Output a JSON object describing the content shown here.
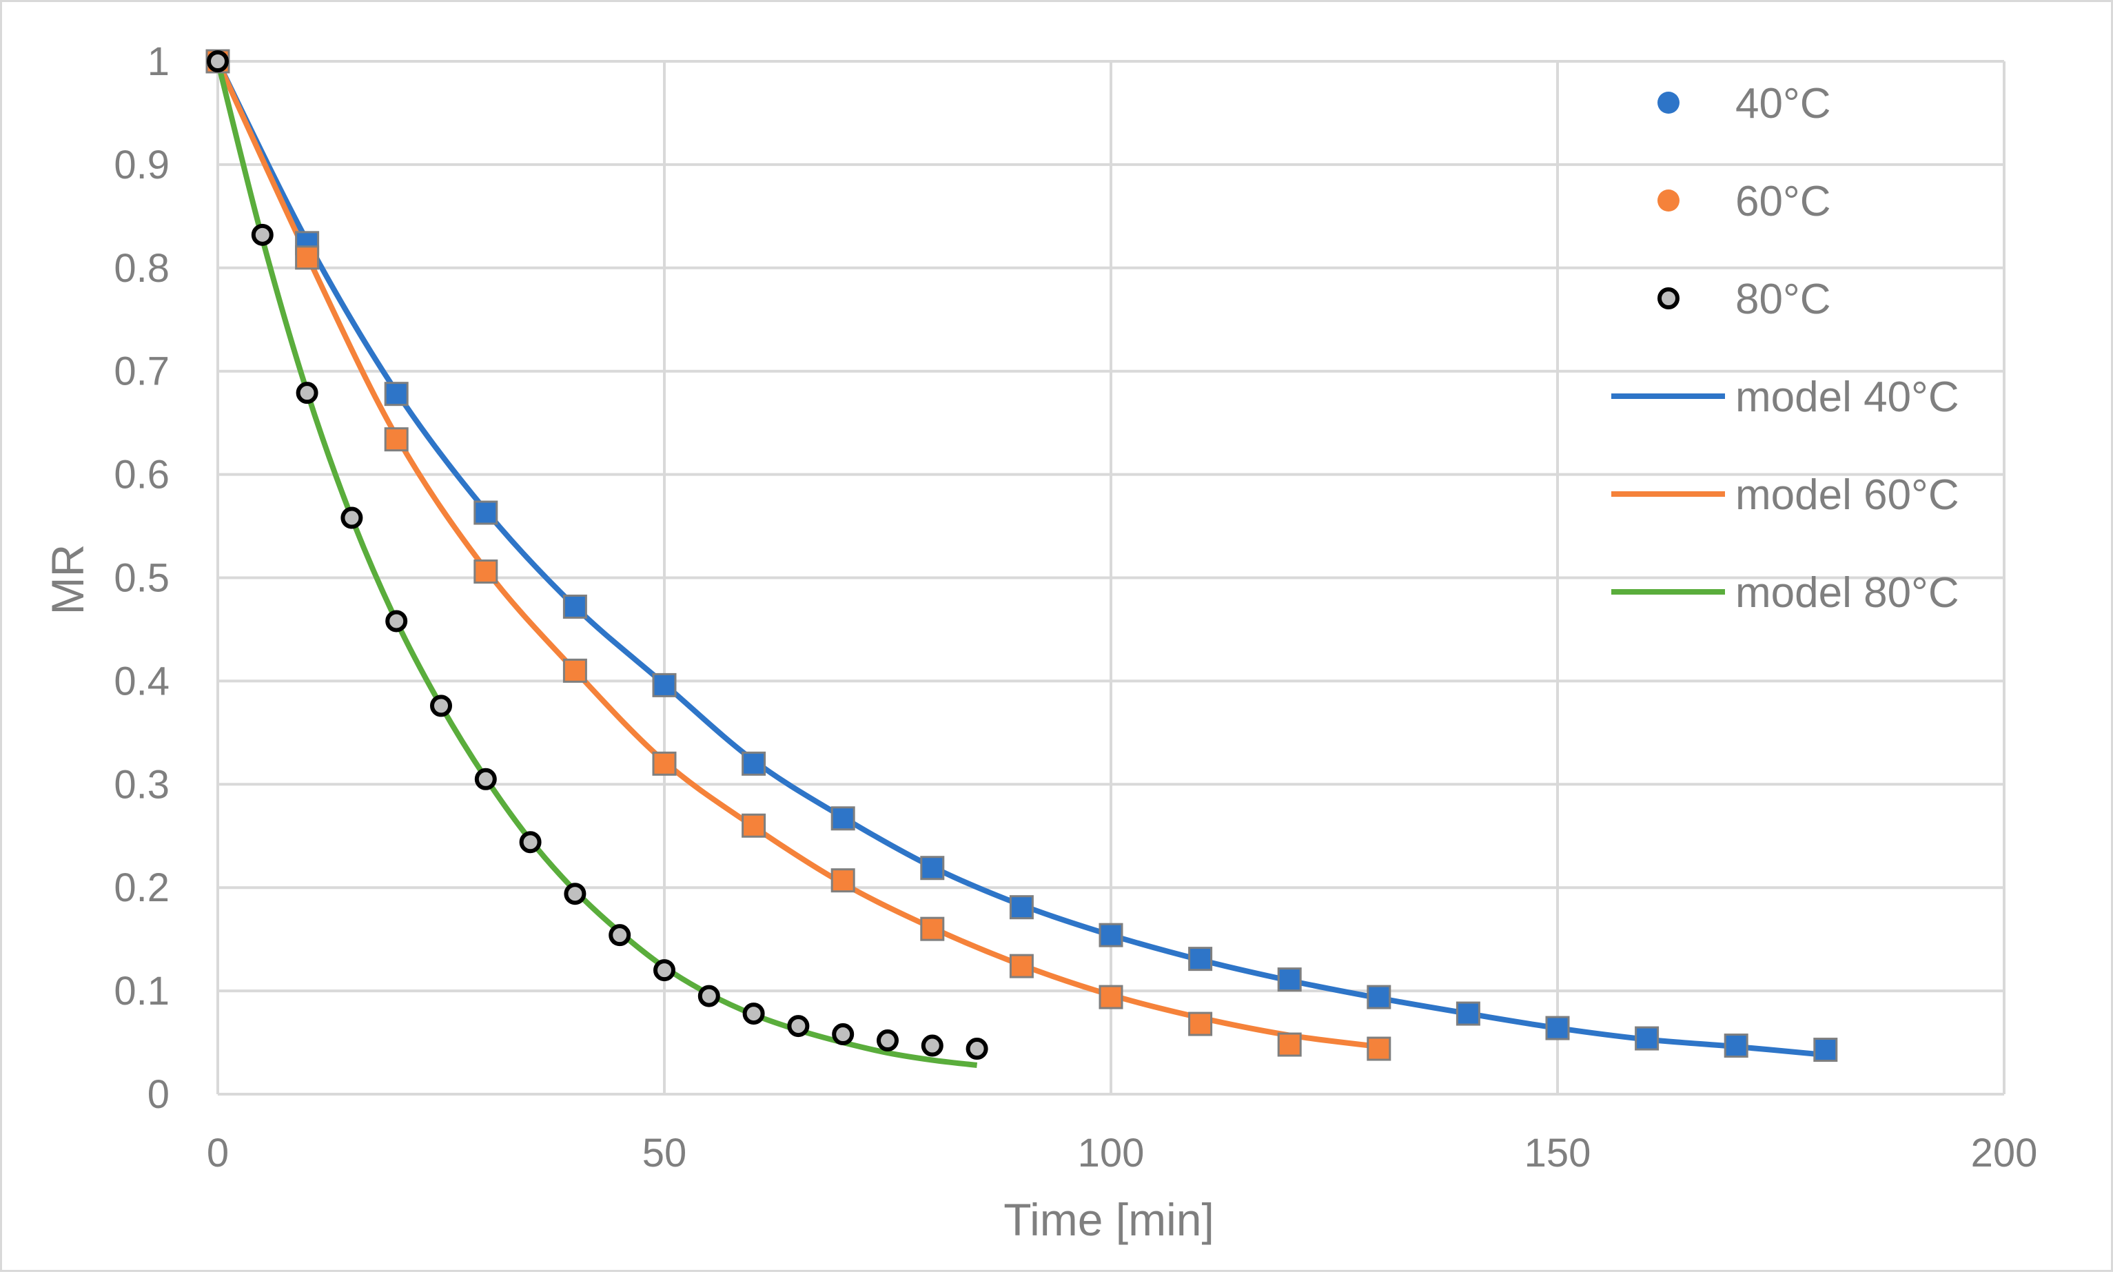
{
  "chart_data": {
    "type": "scatter",
    "title": "",
    "xlabel": "Time [min]",
    "ylabel": "MR",
    "xlim": [
      0,
      200
    ],
    "ylim": [
      0,
      1
    ],
    "x_ticks": [
      0,
      50,
      100,
      150,
      200
    ],
    "y_ticks": [
      0,
      0.1,
      0.2,
      0.3,
      0.4,
      0.5,
      0.6,
      0.7,
      0.8,
      0.9,
      1
    ],
    "grid": true,
    "legend_position": "top-right",
    "series": [
      {
        "name": "40°C",
        "kind": "points",
        "color": "#2e75c8",
        "marker": "square",
        "x": [
          0,
          10,
          20,
          30,
          40,
          50,
          60,
          70,
          80,
          90,
          100,
          110,
          120,
          130,
          140,
          150,
          160,
          170,
          180
        ],
        "y": [
          1.0,
          0.824,
          0.678,
          0.563,
          0.472,
          0.396,
          0.32,
          0.267,
          0.219,
          0.181,
          0.154,
          0.131,
          0.111,
          0.094,
          0.078,
          0.064,
          0.054,
          0.047,
          0.043
        ]
      },
      {
        "name": "60°C",
        "kind": "points",
        "color": "#f5823a",
        "marker": "square",
        "x": [
          0,
          10,
          20,
          30,
          40,
          50,
          60,
          70,
          80,
          90,
          100,
          110,
          120,
          130
        ],
        "y": [
          1.0,
          0.81,
          0.634,
          0.506,
          0.41,
          0.32,
          0.26,
          0.207,
          0.16,
          0.124,
          0.094,
          0.068,
          0.048,
          0.044
        ]
      },
      {
        "name": "80°C",
        "kind": "points",
        "color": "#bfbfbf",
        "stroke": "#000000",
        "marker": "circle",
        "x": [
          0,
          5,
          10,
          15,
          20,
          25,
          30,
          35,
          40,
          45,
          50,
          55,
          60,
          65,
          70,
          75,
          80,
          85
        ],
        "y": [
          1.0,
          0.832,
          0.679,
          0.558,
          0.458,
          0.376,
          0.305,
          0.244,
          0.194,
          0.154,
          0.12,
          0.095,
          0.078,
          0.066,
          0.058,
          0.052,
          0.047,
          0.044
        ]
      },
      {
        "name": "model 40°C",
        "kind": "line",
        "color": "#2e75c8",
        "x": [
          0,
          10,
          20,
          30,
          40,
          50,
          60,
          70,
          80,
          90,
          100,
          110,
          120,
          130,
          140,
          150,
          160,
          170,
          180
        ],
        "y": [
          1.0,
          0.826,
          0.68,
          0.565,
          0.472,
          0.397,
          0.323,
          0.268,
          0.22,
          0.183,
          0.154,
          0.13,
          0.11,
          0.093,
          0.078,
          0.064,
          0.053,
          0.046,
          0.038
        ]
      },
      {
        "name": "model 60°C",
        "kind": "line",
        "color": "#f5823a",
        "x": [
          0,
          10,
          20,
          30,
          40,
          50,
          60,
          70,
          80,
          90,
          100,
          110,
          120,
          130
        ],
        "y": [
          1.0,
          0.812,
          0.637,
          0.508,
          0.41,
          0.322,
          0.259,
          0.204,
          0.161,
          0.125,
          0.096,
          0.074,
          0.057,
          0.046
        ]
      },
      {
        "name": "model 80°C",
        "kind": "line",
        "color": "#5aad3c",
        "x": [
          0,
          5,
          10,
          15,
          20,
          25,
          30,
          35,
          40,
          45,
          50,
          55,
          60,
          65,
          70,
          75,
          80,
          85
        ],
        "y": [
          1.0,
          0.828,
          0.68,
          0.558,
          0.458,
          0.376,
          0.306,
          0.246,
          0.197,
          0.157,
          0.123,
          0.097,
          0.077,
          0.062,
          0.05,
          0.04,
          0.033,
          0.028
        ]
      }
    ]
  }
}
